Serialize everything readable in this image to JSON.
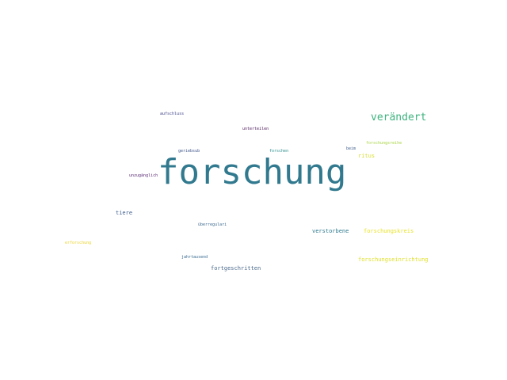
{
  "words": [
    {
      "text": "forschung",
      "color": "#31798e"
    },
    {
      "text": "verändert",
      "color": "#3db37e"
    },
    {
      "text": "aufschluss",
      "color": "#41468a"
    },
    {
      "text": "unterteilen",
      "color": "#4b1758"
    },
    {
      "text": "forschungsreihe",
      "color": "#a6d43e"
    },
    {
      "text": "beim",
      "color": "#3e5e8d"
    },
    {
      "text": "forschen",
      "color": "#2a8c8b"
    },
    {
      "text": "geriebsub",
      "color": "#3a5388"
    },
    {
      "text": "ritus",
      "color": "#d7df2b"
    },
    {
      "text": "unzugänglich",
      "color": "#582a74"
    },
    {
      "text": "tiere",
      "color": "#3f5c8c"
    },
    {
      "text": "überregulari",
      "color": "#3e6a8e"
    },
    {
      "text": "verstorbene",
      "color": "#2f7b8e"
    },
    {
      "text": "forschungskreis",
      "color": "#e8e429"
    },
    {
      "text": "erforschung",
      "color": "#ead52b"
    },
    {
      "text": "jahrtausend",
      "color": "#34678e"
    },
    {
      "text": "forschungseinrichtung",
      "color": "#dfe02c"
    },
    {
      "text": "fortgeschritten",
      "color": "#4b6a8c"
    }
  ]
}
